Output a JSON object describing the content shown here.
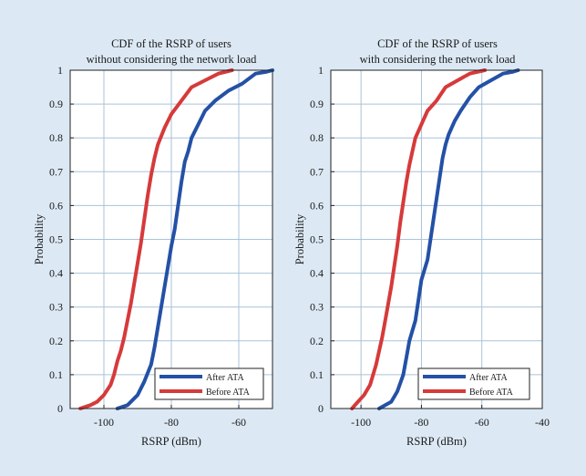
{
  "colors": {
    "figure_background": "#dce9f5",
    "after_ata": "#2451a6",
    "before_ata": "#d63a3a",
    "grid": "#a9c2d8"
  },
  "chart_data": [
    {
      "type": "line",
      "title": [
        "CDF of the RSRP of users",
        "without considering the network load"
      ],
      "xlabel": "RSRP (dBm)",
      "ylabel": "Probability",
      "xlim": [
        -110,
        -50
      ],
      "ylim": [
        0,
        1
      ],
      "x_ticks": [
        -100,
        -80,
        -60
      ],
      "x_tick_labels": [
        "-100",
        "-80",
        "-60"
      ],
      "y_ticks": [
        0,
        0.1,
        0.2,
        0.3,
        0.4,
        0.5,
        0.6,
        0.7,
        0.8,
        0.9,
        1
      ],
      "y_tick_labels": [
        "0",
        "0.1",
        "0.2",
        "0.3",
        "0.4",
        "0.5",
        "0.6",
        "0.7",
        "0.8",
        "0.9",
        "1"
      ],
      "grid": true,
      "legend_position": "bottom-right",
      "series": [
        {
          "name": "After ATA",
          "color": "#2451a6",
          "x": [
            -96,
            -93,
            -90,
            -88,
            -86,
            -85,
            -84,
            -83,
            -82,
            -81,
            -80,
            -79,
            -78,
            -77,
            -76,
            -75,
            -74,
            -72,
            -70,
            -67,
            -63,
            -59,
            -55,
            -52,
            -50
          ],
          "y": [
            0,
            0.01,
            0.04,
            0.08,
            0.13,
            0.18,
            0.24,
            0.3,
            0.36,
            0.42,
            0.48,
            0.53,
            0.6,
            0.67,
            0.73,
            0.76,
            0.8,
            0.84,
            0.88,
            0.91,
            0.94,
            0.96,
            0.99,
            0.995,
            1
          ]
        },
        {
          "name": "Before ATA",
          "color": "#d63a3a",
          "x": [
            -107,
            -104,
            -102,
            -100,
            -98,
            -97,
            -96,
            -95,
            -94,
            -93,
            -92,
            -91,
            -90,
            -89,
            -88,
            -87,
            -86,
            -85,
            -84,
            -82,
            -80,
            -77,
            -74,
            -70,
            -66,
            -62
          ],
          "y": [
            0,
            0.01,
            0.02,
            0.04,
            0.07,
            0.1,
            0.14,
            0.17,
            0.21,
            0.26,
            0.31,
            0.37,
            0.43,
            0.49,
            0.56,
            0.63,
            0.69,
            0.74,
            0.78,
            0.83,
            0.87,
            0.91,
            0.95,
            0.97,
            0.99,
            1
          ]
        }
      ]
    },
    {
      "type": "line",
      "title": [
        "CDF of the RSRP of users",
        "with considering the network load"
      ],
      "xlabel": "RSRP (dBm)",
      "ylabel": "Probability",
      "xlim": [
        -110,
        -40
      ],
      "ylim": [
        0,
        1
      ],
      "x_ticks": [
        -100,
        -80,
        -60,
        -40
      ],
      "x_tick_labels": [
        "-100",
        "-80",
        "-60",
        "-40"
      ],
      "y_ticks": [
        0,
        0.1,
        0.2,
        0.3,
        0.4,
        0.5,
        0.6,
        0.7,
        0.8,
        0.9,
        1
      ],
      "y_tick_labels": [
        "0",
        "0.1",
        "0.2",
        "0.3",
        "0.4",
        "0.5",
        "0.6",
        "0.7",
        "0.8",
        "0.9",
        "1"
      ],
      "grid": true,
      "legend_position": "bottom-right",
      "series": [
        {
          "name": "After ATA",
          "color": "#2451a6",
          "x": [
            -94,
            -90,
            -88,
            -86,
            -85,
            -84,
            -82,
            -81,
            -80,
            -78,
            -77,
            -76,
            -75,
            -74,
            -73,
            -72,
            -71,
            -69,
            -67,
            -64,
            -61,
            -57,
            -53,
            -50,
            -48
          ],
          "y": [
            0,
            0.02,
            0.05,
            0.1,
            0.15,
            0.2,
            0.26,
            0.32,
            0.38,
            0.44,
            0.5,
            0.56,
            0.62,
            0.68,
            0.74,
            0.78,
            0.81,
            0.85,
            0.88,
            0.92,
            0.95,
            0.97,
            0.99,
            0.995,
            1
          ]
        },
        {
          "name": "Before ATA",
          "color": "#d63a3a",
          "x": [
            -103,
            -101,
            -99,
            -97,
            -96,
            -95,
            -94,
            -93,
            -92,
            -91,
            -90,
            -89,
            -88,
            -87,
            -86,
            -85,
            -84,
            -83,
            -82,
            -80,
            -78,
            -75,
            -72,
            -68,
            -64,
            -59
          ],
          "y": [
            0,
            0.02,
            0.04,
            0.07,
            0.1,
            0.13,
            0.17,
            0.21,
            0.26,
            0.31,
            0.36,
            0.42,
            0.48,
            0.55,
            0.61,
            0.67,
            0.72,
            0.76,
            0.8,
            0.84,
            0.88,
            0.91,
            0.95,
            0.97,
            0.99,
            1
          ]
        }
      ]
    }
  ]
}
